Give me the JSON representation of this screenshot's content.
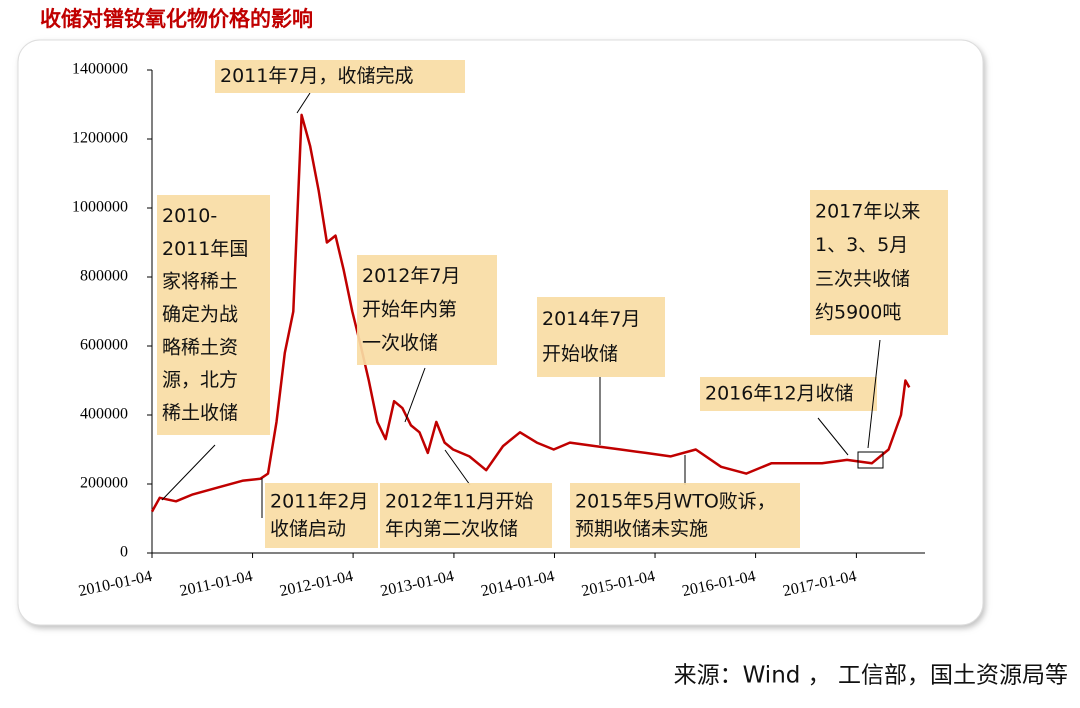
{
  "chart_data": {
    "type": "line",
    "title": "收储对镨钕氧化物价格的影响",
    "source": "来源：Wind ， 工信部，国土资源局等",
    "color": "#c00000",
    "x": [
      "2010-01-04",
      "2010-02-01",
      "2010-04-01",
      "2010-06-01",
      "2010-09-01",
      "2010-12-01",
      "2011-02-01",
      "2011-03-01",
      "2011-04-01",
      "2011-05-01",
      "2011-06-01",
      "2011-07-01",
      "2011-08-01",
      "2011-09-01",
      "2011-10-01",
      "2011-11-01",
      "2011-12-01",
      "2012-01-01",
      "2012-02-01",
      "2012-03-01",
      "2012-04-01",
      "2012-05-01",
      "2012-06-01",
      "2012-07-01",
      "2012-08-01",
      "2012-09-01",
      "2012-10-01",
      "2012-11-01",
      "2012-12-01",
      "2013-01-01",
      "2013-03-01",
      "2013-05-01",
      "2013-07-01",
      "2013-09-01",
      "2013-11-01",
      "2014-01-01",
      "2014-03-01",
      "2014-06-01",
      "2014-09-01",
      "2014-12-01",
      "2015-03-01",
      "2015-06-01",
      "2015-09-01",
      "2015-12-01",
      "2016-03-01",
      "2016-06-01",
      "2016-09-01",
      "2016-12-01",
      "2017-03-01",
      "2017-05-01",
      "2017-06-15",
      "2017-07-01",
      "2017-07-15"
    ],
    "values": [
      120000,
      160000,
      150000,
      170000,
      190000,
      210000,
      215000,
      230000,
      380000,
      580000,
      700000,
      1270000,
      1180000,
      1050000,
      900000,
      920000,
      820000,
      700000,
      600000,
      500000,
      380000,
      330000,
      440000,
      420000,
      370000,
      350000,
      290000,
      380000,
      320000,
      300000,
      280000,
      240000,
      310000,
      350000,
      320000,
      300000,
      320000,
      310000,
      300000,
      290000,
      280000,
      300000,
      250000,
      230000,
      260000,
      260000,
      260000,
      270000,
      260000,
      300000,
      400000,
      500000,
      480000
    ],
    "xlim": [
      "2010-01-04",
      "2017-09-10"
    ],
    "xticks": [
      "2010-01-04",
      "2011-01-04",
      "2012-01-04",
      "2013-01-04",
      "2014-01-04",
      "2015-01-04",
      "2016-01-04",
      "2017-01-04"
    ],
    "ylim": [
      0,
      1400000
    ],
    "yticks": [
      0,
      200000,
      400000,
      600000,
      800000,
      1000000,
      1200000,
      1400000
    ],
    "annotations": [
      {
        "lines": [
          "2011年7月，收储完成"
        ]
      },
      {
        "lines": [
          "2010-",
          "2011年国",
          "家将稀土",
          "确定为战",
          "略稀土资",
          "源，北方",
          "稀土收储"
        ]
      },
      {
        "lines": [
          "2012年7月",
          "开始年内第",
          "一次收储"
        ]
      },
      {
        "lines": [
          "2014年7月",
          "开始收储"
        ]
      },
      {
        "lines": [
          "2016年12月收储"
        ]
      },
      {
        "lines": [
          "2017年以来",
          "1、3、5月",
          "三次共收储",
          "约5900吨"
        ]
      },
      {
        "lines": [
          "2011年2月",
          "收储启动"
        ]
      },
      {
        "lines": [
          "2012年11月开始",
          "年内第二次收储"
        ]
      },
      {
        "lines": [
          "2015年5月WTO败诉，",
          "预期收储未实施"
        ]
      }
    ]
  }
}
